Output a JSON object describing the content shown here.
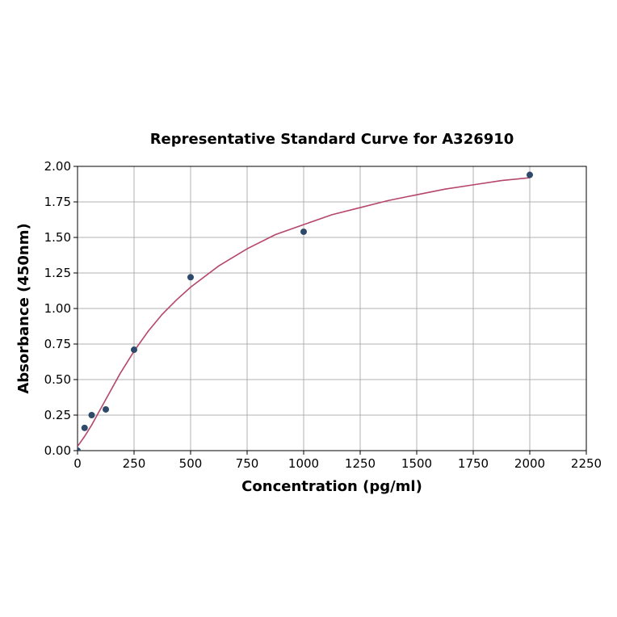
{
  "chart_data": {
    "type": "scatter",
    "title": "Representative Standard Curve for A326910",
    "xlabel": "Concentration (pg/ml)",
    "ylabel": "Absorbance (450nm)",
    "xlim": [
      0,
      2250
    ],
    "ylim": [
      0,
      2.0
    ],
    "xticks": [
      0,
      250,
      500,
      750,
      1000,
      1250,
      1500,
      1750,
      2000,
      2250
    ],
    "yticks": [
      0.0,
      0.25,
      0.5,
      0.75,
      1.0,
      1.25,
      1.5,
      1.75,
      2.0
    ],
    "xtick_labels": [
      "0",
      "250",
      "500",
      "750",
      "1000",
      "1250",
      "1500",
      "1750",
      "2000",
      "2250"
    ],
    "ytick_labels": [
      "0.00",
      "0.25",
      "0.50",
      "0.75",
      "1.00",
      "1.25",
      "1.50",
      "1.75",
      "2.00"
    ],
    "grid": true,
    "series": [
      {
        "type": "scatter",
        "color": "#2e4a6b",
        "x": [
          0,
          31.25,
          62.5,
          125,
          250,
          500,
          1000,
          2000
        ],
        "y": [
          0.0,
          0.16,
          0.25,
          0.29,
          0.71,
          1.22,
          1.54,
          1.94
        ]
      },
      {
        "type": "line",
        "color": "#b5476a",
        "x": [
          0,
          31.25,
          62.5,
          125,
          187.5,
          250,
          312.5,
          375,
          437.5,
          500,
          625,
          750,
          875,
          1000,
          1125,
          1250,
          1375,
          1500,
          1625,
          1750,
          1875,
          2000
        ],
        "y": [
          0.03,
          0.1,
          0.18,
          0.36,
          0.54,
          0.7,
          0.84,
          0.96,
          1.06,
          1.15,
          1.3,
          1.42,
          1.52,
          1.59,
          1.66,
          1.71,
          1.76,
          1.8,
          1.84,
          1.87,
          1.9,
          1.92
        ]
      }
    ]
  }
}
